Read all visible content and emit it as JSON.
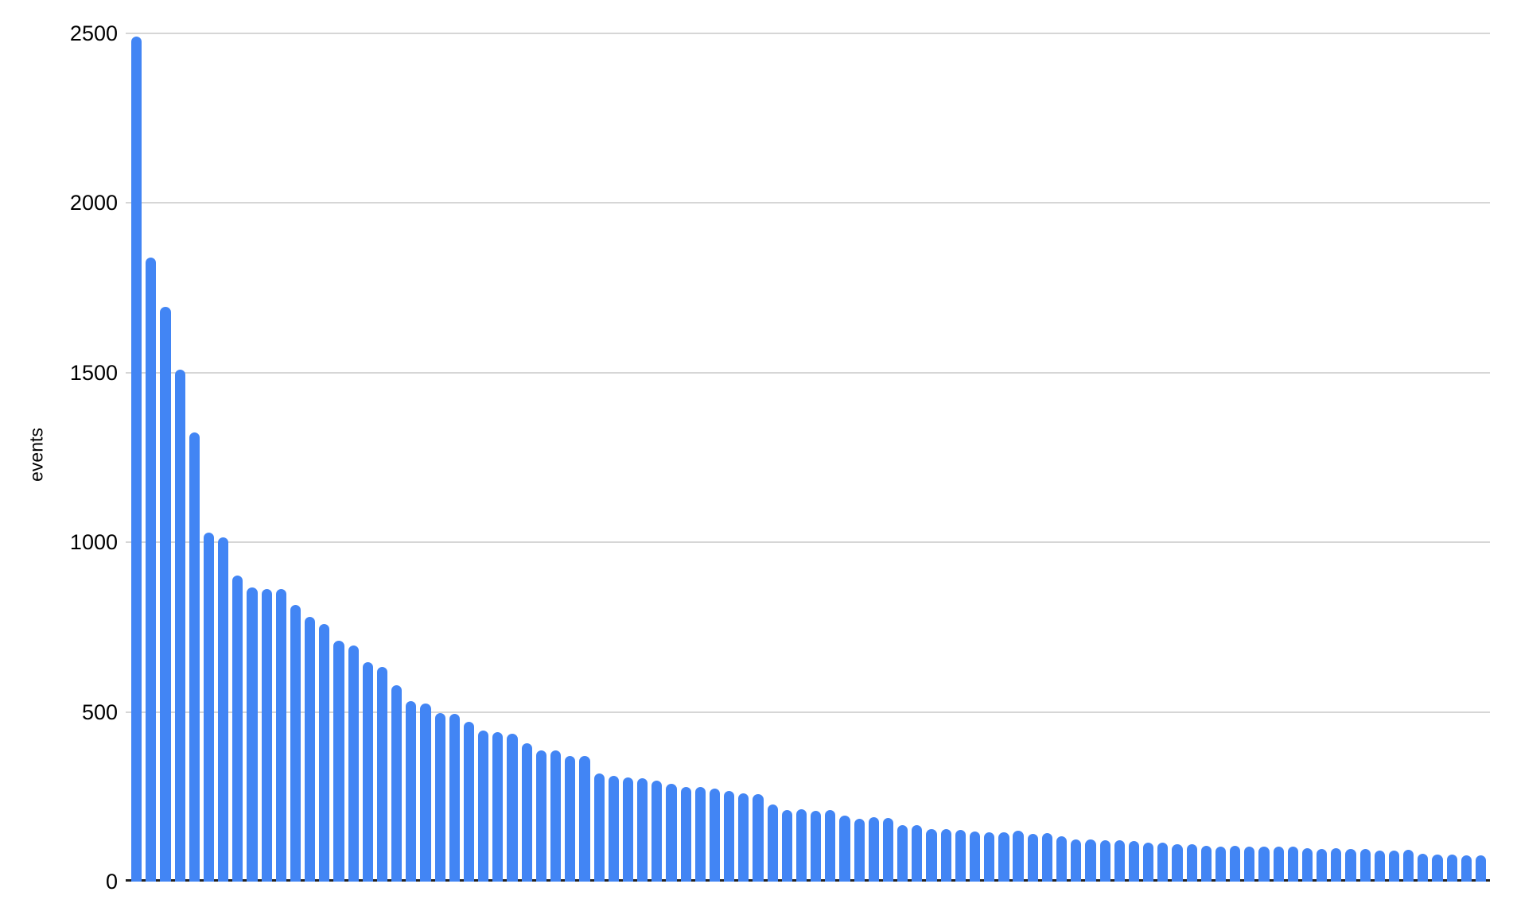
{
  "chart_data": {
    "type": "bar",
    "title": "",
    "xlabel": "",
    "ylabel": "events",
    "ylim": [
      0,
      2500
    ],
    "y_ticks": [
      0,
      500,
      1000,
      1500,
      2000,
      2500
    ],
    "grid": true,
    "legend_position": "none",
    "x_tick_labels_visible": false,
    "bar_color": "#4285f4",
    "gridline_color": "#d6d6d6",
    "axis_line_color": "#212121",
    "text_color": "#000000",
    "background_color": "#ffffff",
    "values": [
      2490,
      1840,
      1694,
      1510,
      1323,
      1028,
      1014,
      903,
      868,
      863,
      863,
      816,
      781,
      759,
      710,
      697,
      647,
      632,
      579,
      533,
      525,
      497,
      494,
      472,
      445,
      441,
      435,
      408,
      386,
      386,
      370,
      370,
      318,
      312,
      308,
      304,
      298,
      289,
      279,
      279,
      275,
      267,
      259,
      257,
      228,
      211,
      214,
      209,
      211,
      194,
      185,
      189,
      187,
      167,
      167,
      155,
      155,
      152,
      148,
      146,
      146,
      149,
      141,
      142,
      133,
      124,
      124,
      121,
      121,
      119,
      115,
      115,
      109,
      109,
      105,
      103,
      105,
      102,
      103,
      102,
      102,
      99,
      97,
      99,
      95,
      96,
      91,
      91,
      93,
      83,
      79,
      79,
      77,
      77
    ]
  }
}
